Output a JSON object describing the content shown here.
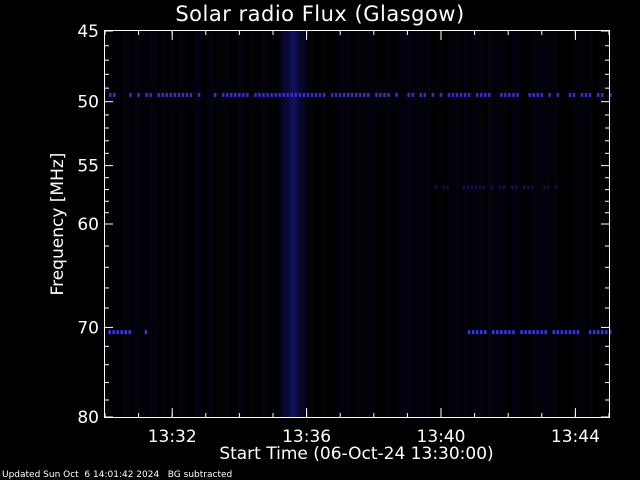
{
  "chart_data": {
    "type": "heatmap",
    "title": "Solar radio Flux (Glasgow)",
    "xlabel": "Start Time (06-Oct-24 13:30:00)",
    "ylabel": "Frequency [MHz]",
    "x_range_minutes": [
      0,
      15
    ],
    "x_ticks": [
      {
        "minute": 2,
        "label": "13:32"
      },
      {
        "minute": 6,
        "label": "13:36"
      },
      {
        "minute": 10,
        "label": "13:40"
      },
      {
        "minute": 14,
        "label": "13:44"
      }
    ],
    "y_axis_scale": "log",
    "ylim": [
      45,
      80
    ],
    "y_ticks": [
      45,
      50,
      55,
      60,
      70,
      80
    ],
    "y_minor_ticks": [
      46,
      47,
      48,
      49,
      51,
      52,
      53,
      54,
      56,
      57,
      58,
      59,
      62,
      64,
      66,
      68,
      72,
      74,
      76,
      78
    ],
    "colormap": [
      "#000000",
      "#0a0a3a",
      "#2a2aa8",
      "#3c3cff"
    ],
    "features": [
      {
        "kind": "broadband_burst",
        "x_minutes": [
          5.2,
          6.0
        ],
        "intensity": 0.45
      },
      {
        "kind": "narrowband_interference",
        "frequency_mhz": 49.5,
        "x_minutes": [
          0,
          15
        ],
        "intensity": 0.8
      },
      {
        "kind": "narrowband_interference",
        "frequency_mhz": 70.5,
        "x_minutes": [
          0.1,
          1.2
        ],
        "intensity": 0.9
      },
      {
        "kind": "narrowband_interference",
        "frequency_mhz": 70.5,
        "x_minutes": [
          10.8,
          15
        ],
        "intensity": 0.9
      },
      {
        "kind": "narrowband_interference",
        "frequency_mhz": 56.8,
        "x_minutes": [
          9.8,
          13.5
        ],
        "intensity": 0.4
      }
    ]
  },
  "footer": {
    "text": "Updated Sun Oct  6 14:01:42 2024   BG subtracted"
  }
}
